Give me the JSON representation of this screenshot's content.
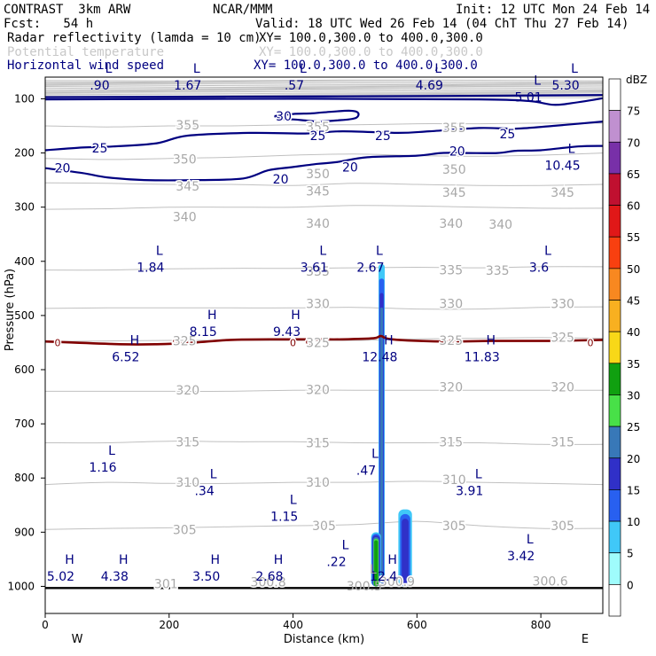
{
  "header": {
    "model": "CONTRAST  3km ARW",
    "org": "NCAR/MMM",
    "init": "Init: 12 UTC Mon 24 Feb 14",
    "fcst": "Fcst:   54 h",
    "valid": "Valid: 18 UTC Wed 26 Feb 14 (04 ChT Thu 27 Feb 14)",
    "fields": [
      {
        "name": "Radar reflectivity (lamda = 10 cm)",
        "xy": "XY= 100.0,300.0 to 400.0,300.0",
        "style": "black"
      },
      {
        "name": "Potential temperature",
        "xy": "XY= 100.0,300.0 to 400.0,300.0",
        "style": "faint"
      },
      {
        "name": "Horizontal wind speed",
        "xy": "XY= 100.0,300.0 to 400.0,300.0",
        "style": "blue"
      }
    ]
  },
  "colors": {
    "theta": "#c0c0c0",
    "wind": "#000080",
    "freezing": "#800000",
    "surface": "#000000"
  },
  "chart_data": {
    "type": "cross-section",
    "xlabel": "Distance (km)",
    "ylabel": "Pressure (hPa)",
    "xlim": [
      0,
      900
    ],
    "ylim": [
      1050,
      60
    ],
    "xticks": [
      0,
      200,
      400,
      600,
      800
    ],
    "yticks": [
      100,
      200,
      300,
      400,
      500,
      600,
      700,
      800,
      900,
      1000
    ],
    "x_end_labels": {
      "left": "W",
      "right": "E"
    },
    "colorbar": {
      "unit": "dBZ",
      "levels": [
        0,
        5,
        10,
        15,
        20,
        25,
        30,
        35,
        40,
        45,
        50,
        55,
        60,
        65,
        70,
        75
      ],
      "colors": [
        "#ffffff",
        "#9ffcfc",
        "#40c8f8",
        "#2860f0",
        "#3030c8",
        "#3878b8",
        "#48e048",
        "#10a010",
        "#f8d818",
        "#f8b020",
        "#f88820",
        "#f84010",
        "#e01818",
        "#c01030",
        "#7830a8",
        "#c090d0",
        "#ffffff"
      ]
    },
    "theta_contours": [
      {
        "label": "355",
        "p": [
          150,
          152,
          150,
          150,
          148,
          148,
          146,
          146,
          145,
          145
        ]
      },
      {
        "label": "350",
        "p": [
          210,
          212,
          210,
          208,
          204,
          202,
          205,
          206,
          204,
          200
        ]
      },
      {
        "label": "345",
        "p": [
          255,
          256,
          258,
          258,
          260,
          256,
          258,
          260,
          260,
          258
        ]
      },
      {
        "label": "340",
        "p": [
          304,
          303,
          300,
          300,
          300,
          297,
          298,
          300,
          302,
          302
        ]
      },
      {
        "label": "335",
        "p": [
          416,
          416,
          414,
          413,
          413,
          412,
          411,
          412,
          410,
          410
        ]
      },
      {
        "label": "330",
        "p": [
          487,
          486,
          486,
          486,
          486,
          485,
          488,
          488,
          485,
          484
        ]
      },
      {
        "label": "325",
        "p": [
          548,
          547,
          546,
          546,
          546,
          546,
          543,
          542,
          541,
          542
        ]
      },
      {
        "label": "320",
        "p": [
          640,
          640,
          640,
          640,
          638,
          638,
          638,
          638,
          638,
          638
        ]
      },
      {
        "label": "315",
        "p": [
          735,
          735,
          732,
          733,
          733,
          735,
          735,
          735,
          738,
          738
        ]
      },
      {
        "label": "310",
        "p": [
          812,
          808,
          810,
          810,
          808,
          808,
          806,
          808,
          810,
          812
        ]
      },
      {
        "label": "305",
        "p": [
          895,
          893,
          892,
          890,
          888,
          886,
          880,
          888,
          893,
          893
        ]
      }
    ],
    "theta_labels": [
      {
        "text": "355",
        "x": 230,
        "p": 148
      },
      {
        "text": "355",
        "x": 440,
        "p": 152
      },
      {
        "text": "355",
        "x": 660,
        "p": 153
      },
      {
        "text": "350",
        "x": 225,
        "p": 211
      },
      {
        "text": "350",
        "x": 440,
        "p": 238
      },
      {
        "text": "350",
        "x": 660,
        "p": 230
      },
      {
        "text": "345",
        "x": 230,
        "p": 261
      },
      {
        "text": "345",
        "x": 440,
        "p": 270
      },
      {
        "text": "345",
        "x": 660,
        "p": 273
      },
      {
        "text": "345",
        "x": 835,
        "p": 273
      },
      {
        "text": "340",
        "x": 225,
        "p": 318
      },
      {
        "text": "340",
        "x": 440,
        "p": 330
      },
      {
        "text": "340",
        "x": 655,
        "p": 330
      },
      {
        "text": "340",
        "x": 735,
        "p": 332
      },
      {
        "text": "335",
        "x": 440,
        "p": 418
      },
      {
        "text": "335",
        "x": 655,
        "p": 416
      },
      {
        "text": "335",
        "x": 730,
        "p": 417
      },
      {
        "text": "330",
        "x": 440,
        "p": 478
      },
      {
        "text": "330",
        "x": 655,
        "p": 478
      },
      {
        "text": "330",
        "x": 835,
        "p": 478
      },
      {
        "text": "325",
        "x": 225,
        "p": 547
      },
      {
        "text": "325",
        "x": 440,
        "p": 550
      },
      {
        "text": "325",
        "x": 655,
        "p": 546
      },
      {
        "text": "325",
        "x": 835,
        "p": 540
      },
      {
        "text": "320",
        "x": 230,
        "p": 638
      },
      {
        "text": "320",
        "x": 440,
        "p": 637
      },
      {
        "text": "320",
        "x": 655,
        "p": 632
      },
      {
        "text": "320",
        "x": 835,
        "p": 632
      },
      {
        "text": "315",
        "x": 230,
        "p": 733
      },
      {
        "text": "315",
        "x": 440,
        "p": 735
      },
      {
        "text": "315",
        "x": 655,
        "p": 733
      },
      {
        "text": "315",
        "x": 835,
        "p": 733
      },
      {
        "text": "310",
        "x": 230,
        "p": 808
      },
      {
        "text": "310",
        "x": 440,
        "p": 808
      },
      {
        "text": "310",
        "x": 660,
        "p": 803
      },
      {
        "text": "305",
        "x": 225,
        "p": 895
      },
      {
        "text": "305",
        "x": 450,
        "p": 888
      },
      {
        "text": "305",
        "x": 660,
        "p": 888
      },
      {
        "text": "305",
        "x": 835,
        "p": 888
      },
      {
        "text": "301",
        "x": 195,
        "p": 995
      },
      {
        "text": "300.8",
        "x": 360,
        "p": 992
      },
      {
        "text": "300.9",
        "x": 568,
        "p": 991
      },
      {
        "text": "300.6",
        "x": 815,
        "p": 990
      }
    ],
    "wind_contours": [
      {
        "label": "25",
        "pts": [
          [
            0,
            195
          ],
          [
            60,
            190
          ],
          [
            110,
            188
          ],
          [
            180,
            182
          ],
          [
            230,
            168
          ],
          [
            330,
            163
          ],
          [
            420,
            164
          ],
          [
            480,
            160
          ],
          [
            570,
            163
          ],
          [
            620,
            160
          ],
          [
            700,
            154
          ],
          [
            760,
            155
          ],
          [
            820,
            150
          ],
          [
            900,
            142
          ]
        ]
      },
      {
        "label": "20",
        "pts": [
          [
            0,
            228
          ],
          [
            60,
            237
          ],
          [
            100,
            245
          ],
          [
            160,
            250
          ],
          [
            250,
            250
          ],
          [
            320,
            247
          ],
          [
            360,
            232
          ],
          [
            400,
            226
          ],
          [
            440,
            220
          ],
          [
            470,
            217
          ],
          [
            520,
            208
          ],
          [
            600,
            205
          ],
          [
            640,
            200
          ],
          [
            680,
            200
          ],
          [
            730,
            200
          ],
          [
            760,
            196
          ],
          [
            800,
            195
          ],
          [
            860,
            188
          ],
          [
            900,
            187
          ]
        ]
      },
      {
        "label": "30",
        "pts": [
          [
            370,
            132
          ],
          [
            400,
            128
          ],
          [
            430,
            127
          ],
          [
            450,
            125
          ],
          [
            490,
            122
          ],
          [
            505,
            126
          ],
          [
            500,
            136
          ],
          [
            470,
            140
          ],
          [
            440,
            142
          ],
          [
            420,
            140
          ],
          [
            400,
            138
          ],
          [
            380,
            137
          ],
          [
            370,
            132
          ]
        ]
      }
    ],
    "wind_labels": [
      {
        "text": "30",
        "x": 385,
        "p": 132
      },
      {
        "text": "25",
        "x": 545,
        "p": 168
      },
      {
        "text": "25",
        "x": 440,
        "p": 168
      },
      {
        "text": "25",
        "x": 746,
        "p": 165
      },
      {
        "text": "25",
        "x": 88,
        "p": 191
      },
      {
        "text": "20",
        "x": 665,
        "p": 197
      },
      {
        "text": "20",
        "x": 492,
        "p": 226
      },
      {
        "text": "20",
        "x": 380,
        "p": 248
      },
      {
        "text": "20",
        "x": 28,
        "p": 228
      }
    ],
    "freezing_level": {
      "label": "0",
      "pts": [
        [
          0,
          548
        ],
        [
          120,
          553
        ],
        [
          180,
          553
        ],
        [
          240,
          550
        ],
        [
          300,
          545
        ],
        [
          380,
          544
        ],
        [
          440,
          544
        ],
        [
          480,
          544
        ],
        [
          530,
          542
        ],
        [
          542,
          538
        ],
        [
          560,
          544
        ],
        [
          640,
          548
        ],
        [
          720,
          547
        ],
        [
          800,
          547
        ],
        [
          860,
          546
        ],
        [
          900,
          545
        ]
      ]
    },
    "extrema": [
      {
        "type": "L",
        "value": ".90",
        "x": 88,
        "p": 75
      },
      {
        "type": "L",
        "value": "1.67",
        "x": 230,
        "p": 75
      },
      {
        "type": "L",
        "value": ".57",
        "x": 402,
        "p": 75
      },
      {
        "type": "L",
        "value": "4.69",
        "x": 620,
        "p": 75
      },
      {
        "type": "L",
        "value": "5.30",
        "x": 840,
        "p": 75
      },
      {
        "type": "L",
        "value": "5.01",
        "x": 780,
        "p": 97
      },
      {
        "type": "L",
        "value": "10.45",
        "x": 835,
        "p": 223
      },
      {
        "type": "L",
        "value": "1.84",
        "x": 170,
        "p": 411
      },
      {
        "type": "L",
        "value": "3.61",
        "x": 434,
        "p": 411
      },
      {
        "type": "L",
        "value": "2.67",
        "x": 525,
        "p": 411
      },
      {
        "type": "L",
        "value": "3.6",
        "x": 797,
        "p": 411
      },
      {
        "type": "H",
        "value": "8.15",
        "x": 255,
        "p": 530
      },
      {
        "type": "H",
        "value": "9.43",
        "x": 390,
        "p": 530
      },
      {
        "type": "H",
        "value": "6.52",
        "x": 130,
        "p": 576
      },
      {
        "type": "H",
        "value": "12.48",
        "x": 540,
        "p": 576
      },
      {
        "type": "H",
        "value": "11.83",
        "x": 705,
        "p": 576
      },
      {
        "type": "L",
        "value": "1.16",
        "x": 93,
        "p": 780
      },
      {
        "type": "L",
        "value": ".47",
        "x": 518,
        "p": 786
      },
      {
        "type": "L",
        "value": ".34",
        "x": 257,
        "p": 823
      },
      {
        "type": "L",
        "value": "3.91",
        "x": 685,
        "p": 823
      },
      {
        "type": "L",
        "value": "1.15",
        "x": 386,
        "p": 871
      },
      {
        "type": "L",
        "value": "3.42",
        "x": 768,
        "p": 944
      },
      {
        "type": "L",
        "value": ".22",
        "x": 470,
        "p": 954
      },
      {
        "type": "H",
        "value": "5.02",
        "x": 25,
        "p": 981
      },
      {
        "type": "H",
        "value": "4.38",
        "x": 112,
        "p": 981
      },
      {
        "type": "H",
        "value": "3.50",
        "x": 260,
        "p": 981
      },
      {
        "type": "H",
        "value": "2.68",
        "x": 362,
        "p": 981
      },
      {
        "type": "H",
        "value": "12.4",
        "x": 546,
        "p": 981
      },
      {
        "type": "L",
        "value": "300.5",
        "x": 515,
        "p": 999
      }
    ],
    "reflectivity_cells": [
      {
        "name": "main-tower",
        "x0": 538,
        "x1": 548,
        "p_top": 405,
        "p_bot": 1000,
        "dbz_max": 20
      },
      {
        "name": "secondary-cell",
        "x0": 570,
        "x1": 592,
        "p_top": 858,
        "p_bot": 1000,
        "dbz_max": 15
      },
      {
        "name": "low-cell",
        "x0": 526,
        "x1": 542,
        "p_top": 900,
        "p_bot": 1000,
        "dbz_max": 30
      }
    ],
    "surface_p": 1003
  }
}
